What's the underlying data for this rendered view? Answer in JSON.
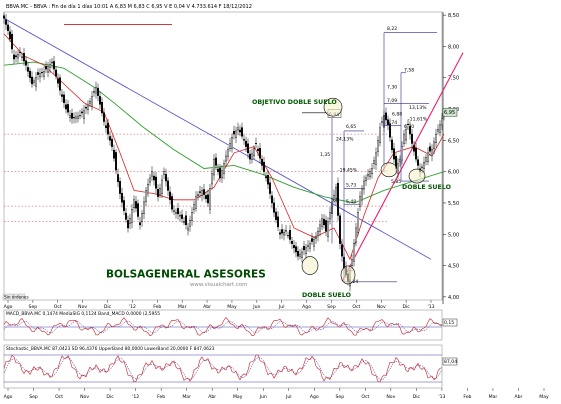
{
  "header": {
    "info": "BBVA.MC - BBVA : Fin de día 1 días  10:01  A 6,83  M 6,83  C 6,95  V  E 0,04  V 4.733.614  F 18/12/2012"
  },
  "colors": {
    "price": "#000000",
    "sma_fast": "#dd2020",
    "sma_slow": "#2aa02a",
    "trendline": "#4a4ad0",
    "rising_line": "#ee1c6c",
    "level_line": "#2c2c8c",
    "target_dash": "#c02020",
    "annotation": "#005800",
    "brand": "#004a00",
    "macd_line": "#cc1f1f",
    "macd_signal": "#1f1faa",
    "stoch_k": "#cc1f1f",
    "stoch_d": "#1f1faa",
    "last_price_badge": "#cfe8cf"
  },
  "chart_data": [
    {
      "type": "candlestick",
      "title": "BBVA.MC - BBVA",
      "x_tick_labels": [
        "Ago",
        "Sep",
        "Oct",
        "Nov",
        "Dic",
        "'12",
        "Feb",
        "Mar",
        "Abr",
        "May",
        "Jun",
        "Jul",
        "Ago",
        "Sep",
        "Oct",
        "Nov",
        "Dic",
        "'13"
      ],
      "y_tick_labels": [
        "8,50",
        "8,00",
        "7,50",
        "7,00",
        "6,50",
        "6,00",
        "5,50",
        "5,00",
        "4,50",
        "4,00"
      ],
      "ylim": [
        3.95,
        8.55
      ],
      "last_price": "6,95",
      "series": [
        {
          "name": "price",
          "points": [
            [
              0,
              8.45
            ],
            [
              5,
              8.2
            ],
            [
              10,
              7.8
            ],
            [
              16,
              7.9
            ],
            [
              22,
              7.7
            ],
            [
              28,
              7.4
            ],
            [
              34,
              7.55
            ],
            [
              40,
              7.6
            ],
            [
              48,
              7.75
            ],
            [
              56,
              7.3
            ],
            [
              62,
              7.0
            ],
            [
              68,
              6.85
            ],
            [
              76,
              6.9
            ],
            [
              84,
              7.05
            ],
            [
              92,
              7.35
            ],
            [
              100,
              6.8
            ],
            [
              108,
              6.4
            ],
            [
              116,
              5.65
            ],
            [
              124,
              5.1
            ],
            [
              130,
              5.55
            ],
            [
              136,
              5.15
            ],
            [
              142,
              5.7
            ],
            [
              148,
              6.0
            ],
            [
              154,
              5.6
            ],
            [
              160,
              6.0
            ],
            [
              168,
              5.4
            ],
            [
              176,
              5.3
            ],
            [
              184,
              5.1
            ],
            [
              192,
              5.6
            ],
            [
              198,
              5.7
            ],
            [
              204,
              5.5
            ],
            [
              210,
              6.2
            ],
            [
              216,
              5.9
            ],
            [
              222,
              6.25
            ],
            [
              228,
              6.55
            ],
            [
              234,
              6.7
            ],
            [
              240,
              6.5
            ],
            [
              246,
              6.2
            ],
            [
              252,
              6.45
            ],
            [
              258,
              6.1
            ],
            [
              264,
              5.8
            ],
            [
              270,
              5.35
            ],
            [
              276,
              5.0
            ],
            [
              282,
              5.05
            ],
            [
              288,
              4.85
            ],
            [
              294,
              4.65
            ],
            [
              300,
              4.75
            ],
            [
              306,
              4.85
            ],
            [
              312,
              4.95
            ],
            [
              318,
              5.25
            ],
            [
              322,
              5.05
            ],
            [
              328,
              5.5
            ],
            [
              332,
              5.75
            ],
            [
              336,
              4.85
            ],
            [
              340,
              4.45
            ],
            [
              344,
              4.25
            ],
            [
              348,
              4.6
            ],
            [
              352,
              5.1
            ],
            [
              356,
              5.6
            ],
            [
              360,
              5.85
            ],
            [
              364,
              5.95
            ],
            [
              368,
              6.05
            ],
            [
              372,
              6.3
            ],
            [
              376,
              6.7
            ],
            [
              380,
              6.9
            ],
            [
              384,
              6.75
            ],
            [
              388,
              6.35
            ],
            [
              392,
              6.05
            ],
            [
              396,
              6.2
            ],
            [
              400,
              6.6
            ],
            [
              404,
              6.75
            ],
            [
              408,
              6.45
            ],
            [
              412,
              6.2
            ],
            [
              416,
              6.0
            ],
            [
              420,
              6.15
            ],
            [
              424,
              6.3
            ],
            [
              428,
              6.35
            ],
            [
              432,
              6.6
            ],
            [
              436,
              6.75
            ],
            [
              440,
              6.95
            ]
          ]
        },
        {
          "name": "sma_fast",
          "points": [
            [
              0,
              8.2
            ],
            [
              20,
              7.85
            ],
            [
              40,
              7.7
            ],
            [
              60,
              7.4
            ],
            [
              80,
              7.1
            ],
            [
              100,
              6.95
            ],
            [
              116,
              6.3
            ],
            [
              130,
              5.7
            ],
            [
              150,
              5.65
            ],
            [
              170,
              5.55
            ],
            [
              190,
              5.55
            ],
            [
              210,
              5.75
            ],
            [
              230,
              6.3
            ],
            [
              250,
              6.4
            ],
            [
              268,
              5.9
            ],
            [
              290,
              5.1
            ],
            [
              310,
              4.95
            ],
            [
              330,
              5.1
            ],
            [
              346,
              4.6
            ],
            [
              360,
              5.3
            ],
            [
              374,
              5.9
            ],
            [
              390,
              6.3
            ],
            [
              410,
              6.4
            ],
            [
              428,
              6.25
            ],
            [
              440,
              6.6
            ]
          ]
        },
        {
          "name": "sma_slow",
          "points": [
            [
              0,
              7.7
            ],
            [
              30,
              7.75
            ],
            [
              60,
              7.65
            ],
            [
              90,
              7.35
            ],
            [
              110,
              7.1
            ],
            [
              140,
              6.7
            ],
            [
              170,
              6.35
            ],
            [
              200,
              6.05
            ],
            [
              230,
              6.1
            ],
            [
              260,
              5.95
            ],
            [
              290,
              5.75
            ],
            [
              320,
              5.6
            ],
            [
              350,
              5.5
            ],
            [
              380,
              5.7
            ],
            [
              410,
              5.85
            ],
            [
              440,
              6.0
            ]
          ]
        }
      ],
      "annotations": {
        "title_target": "OBJETIVO DOBLE SUELO",
        "double_bottom_left": "DOBLE SUELO",
        "double_bottom_right": "DOBLE SUELO",
        "brand": "BOLSAGENERAL ASESORES",
        "watermark": "www.visualchart.com",
        "footer_label": "Sin órdenes",
        "levels": [
          {
            "label": "8,22",
            "value": 8.22
          },
          {
            "label": "7,58",
            "value": 7.58
          },
          {
            "label": "7,30",
            "value": 7.3
          },
          {
            "label": "7,09",
            "value": 7.09
          },
          {
            "label": "6,88",
            "value": 6.88
          },
          {
            "label": "6,94",
            "value": 6.94
          },
          {
            "label": "6,74",
            "value": 6.74
          },
          {
            "label": "6,70",
            "value": 6.7
          },
          {
            "label": "6,65",
            "value": 6.65
          },
          {
            "label": "5,73",
            "value": 5.73
          },
          {
            "label": "5,48",
            "value": 5.48
          },
          {
            "label": "5,5",
            "value": 5.5
          },
          {
            "label": "5,85",
            "value": 5.85
          },
          {
            "label": "4,24",
            "value": 4.24
          }
        ],
        "percentages": [
          "24,13%",
          "-19,45%",
          "13,13%",
          "-11,61%",
          "1,35"
        ]
      }
    },
    {
      "type": "line",
      "title": "MACD_BBVA.MC  0,1474  MediaSIG  0,1124  Band_MACD  0,0000  (2,5955",
      "last_value": "0,15",
      "series": [
        {
          "name": "MACD"
        },
        {
          "name": "MediaSIG"
        }
      ]
    },
    {
      "type": "line",
      "title": "Stochastic_BBVA.MC  87,0423  SD  96,4376  UpperBand  80,0000  LowerBand  20,0000  F  847,0623",
      "last_value": "87,04",
      "series": [
        {
          "name": "%K"
        },
        {
          "name": "%D"
        }
      ]
    }
  ],
  "x_axis_bottom": [
    "Ago",
    "Sep",
    "Oct",
    "Nov",
    "Dic",
    "'12",
    "Feb",
    "Mar",
    "Abr",
    "May",
    "Jun",
    "Jul",
    "Ago",
    "Sep",
    "Oct",
    "Nov",
    "Dic",
    "'13",
    "Feb",
    "Mar",
    "Abr",
    "May"
  ]
}
